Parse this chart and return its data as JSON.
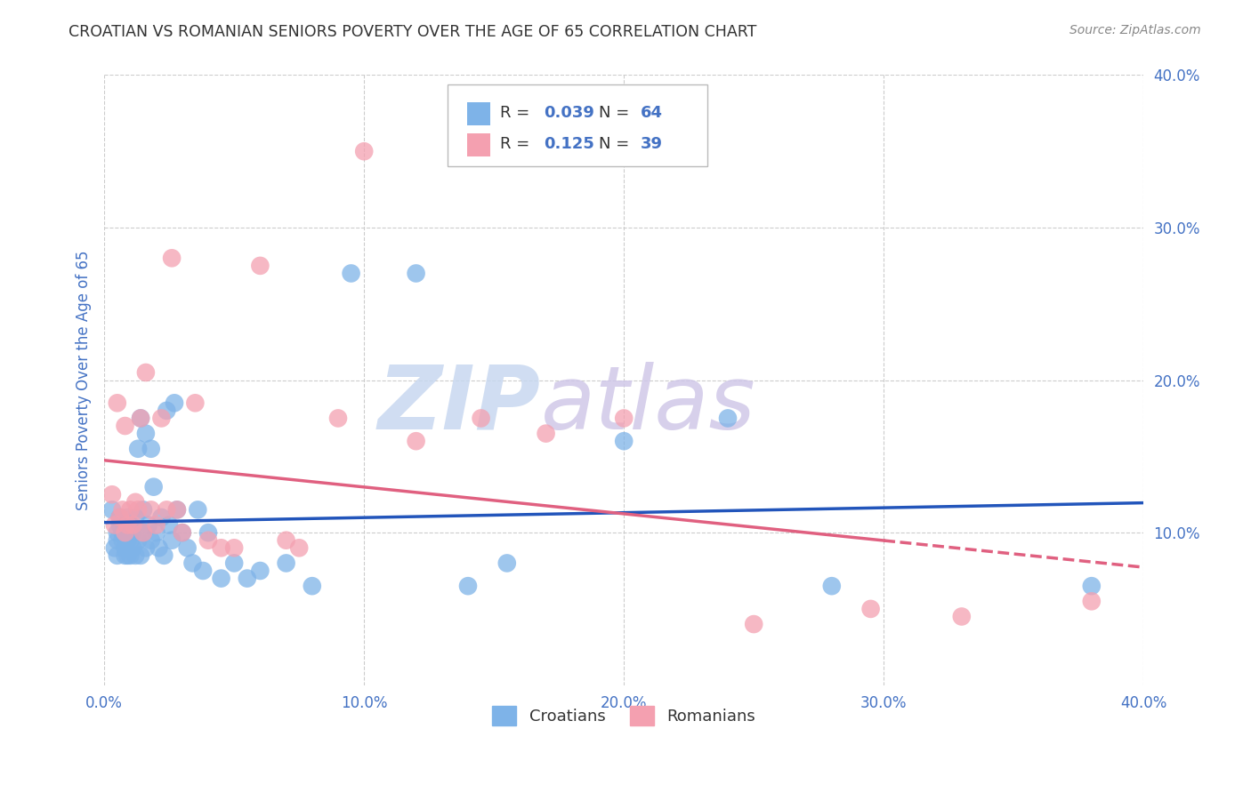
{
  "title": "CROATIAN VS ROMANIAN SENIORS POVERTY OVER THE AGE OF 65 CORRELATION CHART",
  "source": "Source: ZipAtlas.com",
  "ylabel": "Seniors Poverty Over the Age of 65",
  "xlim": [
    0,
    0.4
  ],
  "ylim": [
    0,
    0.4
  ],
  "xtick_vals": [
    0.0,
    0.1,
    0.2,
    0.3,
    0.4
  ],
  "ytick_vals": [
    0.1,
    0.2,
    0.3,
    0.4
  ],
  "croatian_color": "#7EB3E8",
  "romanian_color": "#F4A0B0",
  "croatian_line_color": "#2255BB",
  "romanian_line_color": "#E06080",
  "croatian_R": 0.039,
  "croatian_N": 64,
  "romanian_R": 0.125,
  "romanian_N": 39,
  "legend_label_croatian": "Croatians",
  "legend_label_romanian": "Romanians",
  "croatian_x": [
    0.003,
    0.004,
    0.005,
    0.005,
    0.005,
    0.006,
    0.006,
    0.007,
    0.007,
    0.008,
    0.008,
    0.008,
    0.009,
    0.009,
    0.009,
    0.009,
    0.01,
    0.01,
    0.01,
    0.011,
    0.011,
    0.012,
    0.012,
    0.013,
    0.013,
    0.014,
    0.014,
    0.015,
    0.015,
    0.016,
    0.016,
    0.017,
    0.018,
    0.018,
    0.019,
    0.02,
    0.021,
    0.022,
    0.023,
    0.024,
    0.025,
    0.026,
    0.027,
    0.028,
    0.03,
    0.032,
    0.034,
    0.036,
    0.038,
    0.04,
    0.045,
    0.05,
    0.055,
    0.06,
    0.07,
    0.08,
    0.095,
    0.12,
    0.14,
    0.155,
    0.2,
    0.24,
    0.28,
    0.38
  ],
  "croatian_y": [
    0.115,
    0.09,
    0.1,
    0.095,
    0.085,
    0.105,
    0.11,
    0.095,
    0.1,
    0.085,
    0.09,
    0.105,
    0.085,
    0.095,
    0.1,
    0.11,
    0.085,
    0.095,
    0.105,
    0.09,
    0.1,
    0.085,
    0.11,
    0.095,
    0.155,
    0.085,
    0.175,
    0.1,
    0.115,
    0.09,
    0.165,
    0.105,
    0.095,
    0.155,
    0.13,
    0.1,
    0.09,
    0.11,
    0.085,
    0.18,
    0.105,
    0.095,
    0.185,
    0.115,
    0.1,
    0.09,
    0.08,
    0.115,
    0.075,
    0.1,
    0.07,
    0.08,
    0.07,
    0.075,
    0.08,
    0.065,
    0.27,
    0.27,
    0.065,
    0.08,
    0.16,
    0.175,
    0.065,
    0.065
  ],
  "romanian_x": [
    0.003,
    0.004,
    0.005,
    0.006,
    0.007,
    0.008,
    0.008,
    0.009,
    0.01,
    0.011,
    0.012,
    0.013,
    0.014,
    0.015,
    0.016,
    0.018,
    0.02,
    0.022,
    0.024,
    0.026,
    0.028,
    0.03,
    0.035,
    0.04,
    0.045,
    0.05,
    0.06,
    0.07,
    0.075,
    0.09,
    0.1,
    0.12,
    0.145,
    0.17,
    0.2,
    0.25,
    0.295,
    0.33,
    0.38
  ],
  "romanian_y": [
    0.125,
    0.105,
    0.185,
    0.11,
    0.115,
    0.1,
    0.17,
    0.105,
    0.115,
    0.105,
    0.12,
    0.115,
    0.175,
    0.1,
    0.205,
    0.115,
    0.105,
    0.175,
    0.115,
    0.28,
    0.115,
    0.1,
    0.185,
    0.095,
    0.09,
    0.09,
    0.275,
    0.095,
    0.09,
    0.175,
    0.35,
    0.16,
    0.175,
    0.165,
    0.175,
    0.04,
    0.05,
    0.045,
    0.055
  ],
  "watermark_zip": "ZIP",
  "watermark_atlas": "atlas",
  "background_color": "#FFFFFF",
  "grid_color": "#CCCCCC",
  "title_color": "#333333",
  "axis_label_color": "#4472C4",
  "tick_color": "#4472C4"
}
